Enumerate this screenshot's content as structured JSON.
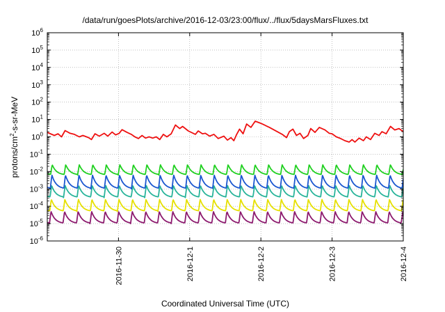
{
  "chart_data": {
    "type": "line",
    "title": "/data/run/goesPlots/archive/2016-12-03/23:00/flux/../flux/5daysMarsFluxes.txt",
    "xlabel": "Coordinated Universal Time (UTC)",
    "ylabel_parts": {
      "pre": "protons/cm",
      "sup": "2",
      "post": "-s-sr-MeV"
    },
    "yscale": "log",
    "ylim_exp": [
      -6,
      6
    ],
    "xlim_days": [
      0,
      4.2
    ],
    "y_tick_exponents": [
      -6,
      -5,
      -4,
      -3,
      -2,
      -1,
      0,
      1,
      2,
      3,
      4,
      5,
      6
    ],
    "y_tick_base": "10",
    "x_ticks": [
      {
        "label": "2016-11-30",
        "day": 1.0
      },
      {
        "label": "2016-12-1",
        "day": 2.0
      },
      {
        "label": "2016-12-2",
        "day": 3.0
      },
      {
        "label": "2016-12-3",
        "day": 4.0
      },
      {
        "label": "2016-12-4",
        "day": 5.0
      }
    ],
    "grid": true,
    "grid_style": "dotted",
    "series": [
      {
        "color": "#8c1a6e",
        "peak_exp": -4.3,
        "trough_exp": -5.0,
        "style": "periodic"
      },
      {
        "color": "#e6e000",
        "peak_exp": -3.6,
        "trough_exp": -4.3,
        "style": "periodic"
      },
      {
        "color": "#28b49a",
        "peak_exp": -2.8,
        "trough_exp": -3.5,
        "style": "periodic"
      },
      {
        "color": "#1a56d0",
        "peak_exp": -2.2,
        "trough_exp": -3.0,
        "style": "periodic"
      },
      {
        "color": "#20d020",
        "peak_exp": -1.6,
        "trough_exp": -2.2,
        "style": "periodic"
      },
      {
        "color": "#ee1010",
        "style": "points",
        "points": [
          [
            0.0,
            1.8
          ],
          [
            0.1,
            1.2
          ],
          [
            0.15,
            1.5
          ],
          [
            0.2,
            1.0
          ],
          [
            0.25,
            2.3
          ],
          [
            0.32,
            1.6
          ],
          [
            0.38,
            1.4
          ],
          [
            0.45,
            1.0
          ],
          [
            0.5,
            1.2
          ],
          [
            0.58,
            0.9
          ],
          [
            0.62,
            0.7
          ],
          [
            0.67,
            1.5
          ],
          [
            0.73,
            1.1
          ],
          [
            0.8,
            1.6
          ],
          [
            0.85,
            1.1
          ],
          [
            0.91,
            1.9
          ],
          [
            0.96,
            1.3
          ],
          [
            1.01,
            1.6
          ],
          [
            1.05,
            2.6
          ],
          [
            1.12,
            1.8
          ],
          [
            1.18,
            1.4
          ],
          [
            1.23,
            1.0
          ],
          [
            1.28,
            0.8
          ],
          [
            1.33,
            1.2
          ],
          [
            1.38,
            0.85
          ],
          [
            1.43,
            1.0
          ],
          [
            1.48,
            0.85
          ],
          [
            1.53,
            1.0
          ],
          [
            1.58,
            0.7
          ],
          [
            1.63,
            1.4
          ],
          [
            1.68,
            1.0
          ],
          [
            1.74,
            1.5
          ],
          [
            1.8,
            4.8
          ],
          [
            1.86,
            3.0
          ],
          [
            1.9,
            4.0
          ],
          [
            1.98,
            2.2
          ],
          [
            2.08,
            1.4
          ],
          [
            2.12,
            2.2
          ],
          [
            2.18,
            1.5
          ],
          [
            2.22,
            1.6
          ],
          [
            2.28,
            1.1
          ],
          [
            2.34,
            1.4
          ],
          [
            2.4,
            0.8
          ],
          [
            2.48,
            1.1
          ],
          [
            2.53,
            0.65
          ],
          [
            2.58,
            0.9
          ],
          [
            2.62,
            0.6
          ],
          [
            2.66,
            1.4
          ],
          [
            2.7,
            2.8
          ],
          [
            2.75,
            1.5
          ],
          [
            2.8,
            5.5
          ],
          [
            2.86,
            3.5
          ],
          [
            2.92,
            8.0
          ],
          [
            3.0,
            6.0
          ],
          [
            3.12,
            3.5
          ],
          [
            3.3,
            1.4
          ],
          [
            3.36,
            0.9
          ],
          [
            3.4,
            2.0
          ],
          [
            3.45,
            2.8
          ],
          [
            3.5,
            1.2
          ],
          [
            3.55,
            1.6
          ],
          [
            3.6,
            0.8
          ],
          [
            3.66,
            1.2
          ],
          [
            3.7,
            3.0
          ],
          [
            3.76,
            1.8
          ],
          [
            3.82,
            3.5
          ],
          [
            3.9,
            2.5
          ],
          [
            3.96,
            1.6
          ],
          [
            4.0,
            1.5
          ],
          [
            4.06,
            1.0
          ],
          [
            4.12,
            0.8
          ],
          [
            4.18,
            0.6
          ],
          [
            4.24,
            0.5
          ],
          [
            4.28,
            0.7
          ],
          [
            4.32,
            0.5
          ],
          [
            4.38,
            0.85
          ],
          [
            4.44,
            0.6
          ],
          [
            4.48,
            1.0
          ],
          [
            4.54,
            0.7
          ],
          [
            4.6,
            1.6
          ],
          [
            4.66,
            1.2
          ],
          [
            4.7,
            2.0
          ],
          [
            4.76,
            1.5
          ],
          [
            4.82,
            4.0
          ],
          [
            4.88,
            2.5
          ],
          [
            4.94,
            3.0
          ],
          [
            5.0,
            2.0
          ]
        ]
      }
    ]
  }
}
